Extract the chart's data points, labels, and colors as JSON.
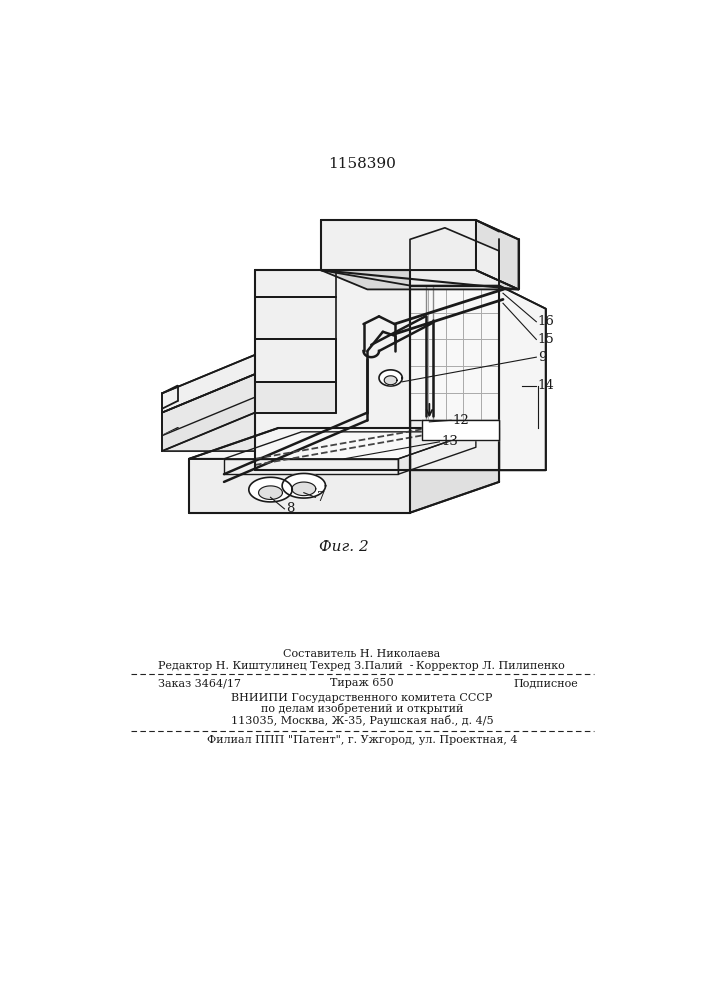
{
  "patent_number": "1158390",
  "fig_label": "Фиг. 2",
  "background_color": "#ffffff",
  "line_color": "#1a1a1a",
  "footer": {
    "sestavitel_label": "Составитель Н. Николаева",
    "redaktor_label": "Редактор Н. Киштулинец",
    "tehred_label": "Техред З.Палий",
    "korrektor_label": "Корректор Л. Пилипенко",
    "zakaz": "Заказ 3464/17",
    "tirazh": "Тираж 650",
    "podpisnoe": "Подписное",
    "vniip_line1": "ВНИИПИ Государственного комитета СССР",
    "vniip_line2": "по делам изобретений и открытий",
    "vniip_line3": "113035, Москва, Ж-35, Раушская наб., д. 4/5",
    "filial": "Филиал ППП \"Патент\", г. Ужгород, ул. Проектная, 4"
  }
}
